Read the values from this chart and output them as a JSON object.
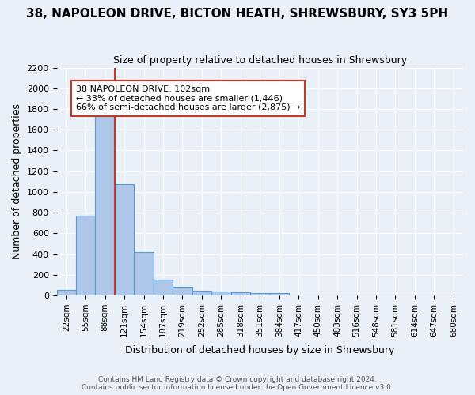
{
  "title": "38, NAPOLEON DRIVE, BICTON HEATH, SHREWSBURY, SY3 5PH",
  "subtitle": "Size of property relative to detached houses in Shrewsbury",
  "xlabel": "Distribution of detached houses by size in Shrewsbury",
  "ylabel": "Number of detached properties",
  "footer_line1": "Contains HM Land Registry data © Crown copyright and database right 2024.",
  "footer_line2": "Contains public sector information licensed under the Open Government Licence v3.0.",
  "bin_labels": [
    "22sqm",
    "55sqm",
    "88sqm",
    "121sqm",
    "154sqm",
    "187sqm",
    "219sqm",
    "252sqm",
    "285sqm",
    "318sqm",
    "351sqm",
    "384sqm",
    "417sqm",
    "450sqm",
    "483sqm",
    "516sqm",
    "548sqm",
    "581sqm",
    "614sqm",
    "647sqm",
    "680sqm"
  ],
  "bar_values": [
    55,
    770,
    1750,
    1075,
    420,
    155,
    85,
    45,
    38,
    30,
    20,
    20,
    0,
    0,
    0,
    0,
    0,
    0,
    0,
    0,
    0
  ],
  "bar_color": "#aec6e8",
  "bar_edge_color": "#5b9bd5",
  "property_line_x": 2.5,
  "property_line_color": "#c0392b",
  "annotation_title": "38 NAPOLEON DRIVE: 102sqm",
  "annotation_line1": "← 33% of detached houses are smaller (1,446)",
  "annotation_line2": "66% of semi-detached houses are larger (2,875) →",
  "annotation_box_color": "#ffffff",
  "annotation_box_edge": "#c0392b",
  "ylim": [
    0,
    2200
  ],
  "yticks": [
    0,
    200,
    400,
    600,
    800,
    1000,
    1200,
    1400,
    1600,
    1800,
    2000,
    2200
  ],
  "bg_color": "#eaf0f8",
  "grid_color": "#ffffff"
}
